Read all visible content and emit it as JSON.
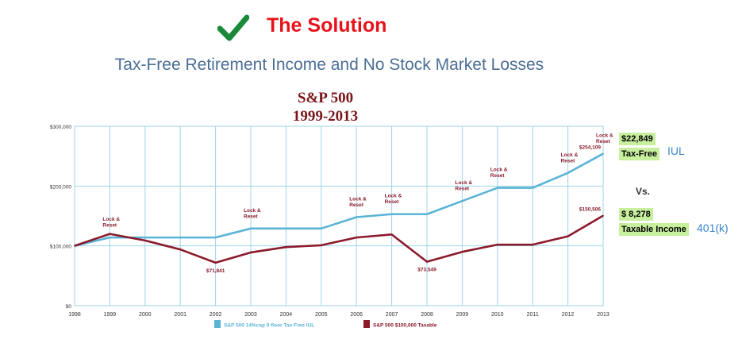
{
  "header": {
    "check_icon": "checkmark-icon",
    "check_color": "#1a8a3a",
    "title": "The Solution",
    "subtitle": "Tax-Free Retirement Income and No Stock Market Losses"
  },
  "chart_data": {
    "type": "line",
    "title": "S&P 500",
    "subtitle": "1999-2013",
    "xlabel": "",
    "ylabel": "",
    "x": [
      1998,
      1999,
      2000,
      2001,
      2002,
      2003,
      2004,
      2005,
      2006,
      2007,
      2008,
      2009,
      2010,
      2011,
      2012,
      2013
    ],
    "x_tick_labels": [
      "1998",
      "1999",
      "2000",
      "2001",
      "2002",
      "2003",
      "2004",
      "2005",
      "2006",
      "2007",
      "2008",
      "2009",
      "2010",
      "2011",
      "2012",
      "2013"
    ],
    "ylim": [
      0,
      300000
    ],
    "y_ticks": [
      0,
      100000,
      200000,
      300000
    ],
    "y_tick_labels": [
      "$0",
      "$100,000",
      "$200,000",
      "$300,000"
    ],
    "grid": true,
    "legend_position": "bottom",
    "series": [
      {
        "name": "S&P 500 14%cap 0 floor Tax-Free IUL",
        "color": "#5ab4d6",
        "values": [
          100000,
          114000,
          114000,
          114000,
          114000,
          129000,
          129000,
          129000,
          148000,
          153000,
          153000,
          175000,
          197000,
          197000,
          222000,
          254109
        ]
      },
      {
        "name": "S&P 500 $100,000 Taxable",
        "color": "#8b1a2b",
        "values": [
          100000,
          120000,
          109000,
          94000,
          71841,
          89000,
          98000,
          101000,
          114000,
          119000,
          73549,
          90000,
          102000,
          102000,
          116000,
          150506
        ]
      }
    ],
    "annotations": [
      {
        "text": "Lock & Reset",
        "x": 1999,
        "series": 0
      },
      {
        "text": "Lock & Reset",
        "x": 2003,
        "series": 0
      },
      {
        "text": "Lock & Reset",
        "x": 2006,
        "series": 0
      },
      {
        "text": "Lock & Reset",
        "x": 2007,
        "series": 0
      },
      {
        "text": "Lock & Reset",
        "x": 2009,
        "series": 0
      },
      {
        "text": "Lock & Reset",
        "x": 2010,
        "series": 0
      },
      {
        "text": "Lock & Reset",
        "x": 2012,
        "series": 0
      },
      {
        "text": "Lock & Reset",
        "x": 2013,
        "series": 0
      }
    ],
    "value_labels": [
      {
        "text": "$254,109",
        "x": 2013,
        "series": 0
      },
      {
        "text": "$150,506",
        "x": 2013,
        "series": 1
      },
      {
        "text": "$71,841",
        "x": 2002,
        "series": 1
      },
      {
        "text": "$73,549",
        "x": 2008,
        "series": 1
      }
    ]
  },
  "side_labels": {
    "tax_free_amount": "$22,849",
    "tax_free_label": "Tax-Free",
    "iul_label": "IUL",
    "vs_label": "Vs.",
    "taxable_amount": "$ 8,278",
    "taxable_label": "Taxable Income",
    "k401_label": "401(k)"
  }
}
